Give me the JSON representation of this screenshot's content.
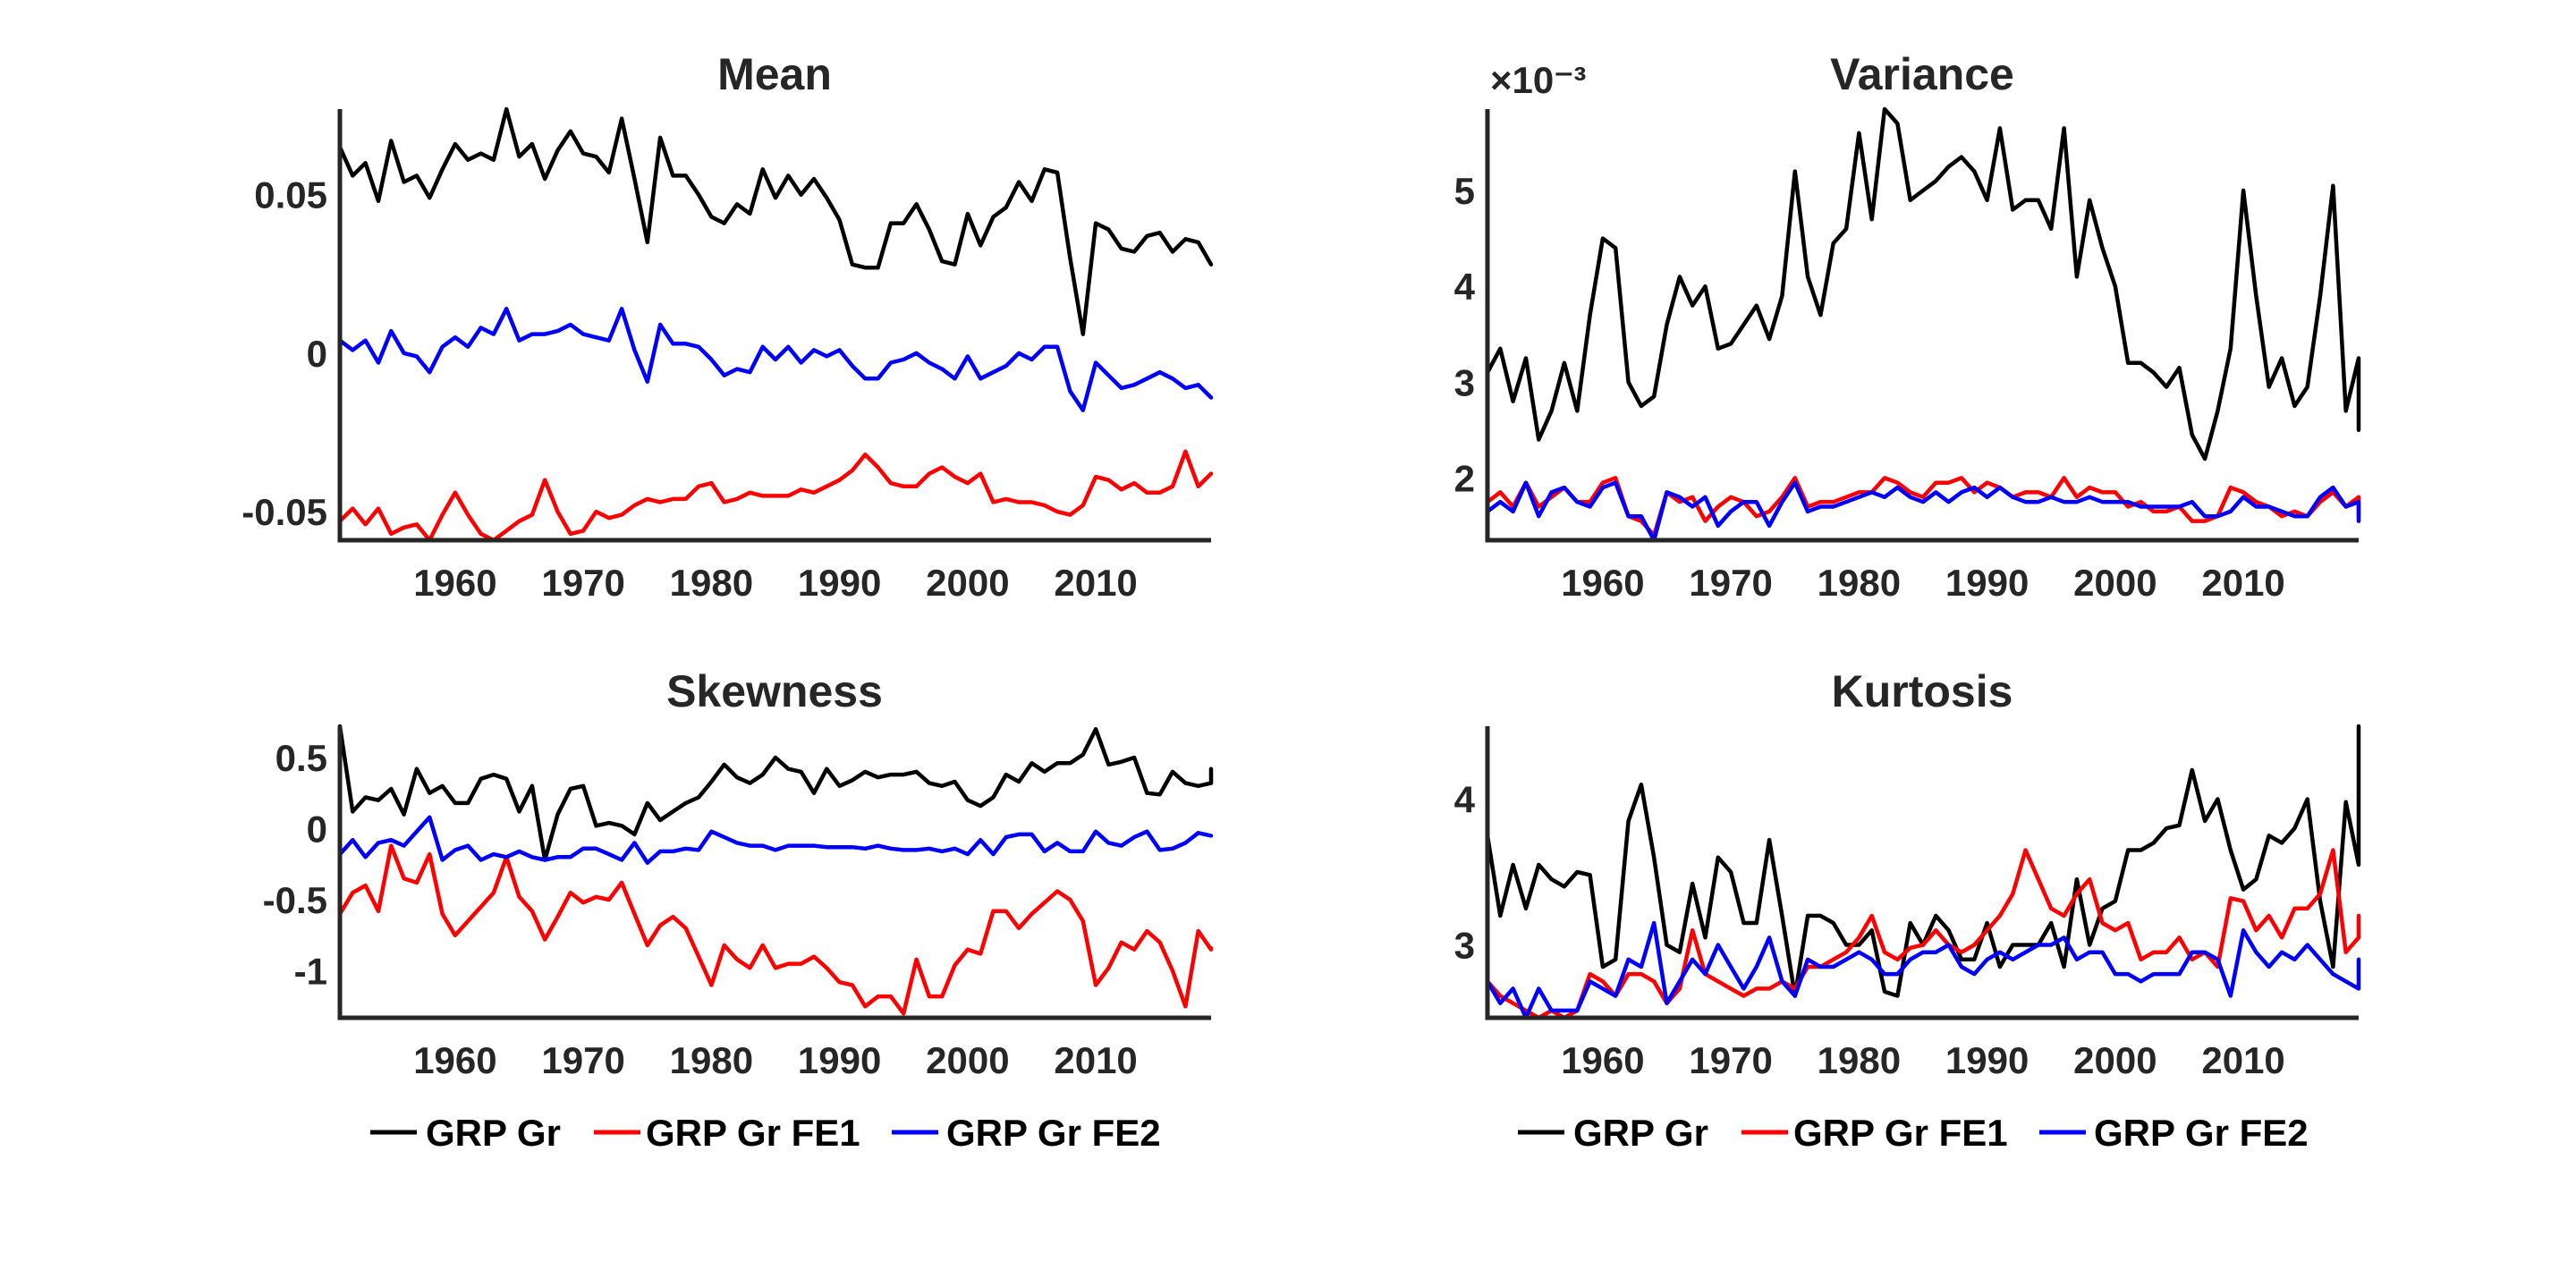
{
  "series_names": [
    "GRP Gr",
    "GRP Gr FE1",
    "GRP Gr FE2"
  ],
  "colors": {
    "GRP Gr": "#000000",
    "GRP Gr FE1": "#ff0000",
    "GRP Gr FE2": "#0000ff",
    "axis": "#262626"
  },
  "chart_data": [
    {
      "type": "line",
      "title": "Mean",
      "xlabel": "",
      "ylabel": "",
      "xlim": [
        1951,
        2019
      ],
      "ylim": [
        -0.059,
        0.077
      ],
      "xticks": [
        1960,
        1970,
        1980,
        1990,
        2000,
        2010
      ],
      "xtick_labels": [
        "1960",
        "1970",
        "1980",
        "1990",
        "2000",
        "2010"
      ],
      "yticks": [
        -0.05,
        0,
        0.05
      ],
      "ytick_labels": [
        "-0.05",
        "0",
        "0.05"
      ],
      "x_start": 1951,
      "series": [
        {
          "name": "GRP Gr",
          "values": [
            0.065,
            0.056,
            0.06,
            0.048,
            0.067,
            0.054,
            0.056,
            0.049,
            0.058,
            0.066,
            0.061,
            0.063,
            0.061,
            0.077,
            0.062,
            0.066,
            0.055,
            0.064,
            0.07,
            0.063,
            0.062,
            0.057,
            0.074,
            0.055,
            0.035,
            0.068,
            0.056,
            0.056,
            0.05,
            0.043,
            0.041,
            0.047,
            0.044,
            0.058,
            0.049,
            0.056,
            0.05,
            0.055,
            0.049,
            0.042,
            0.028,
            0.027,
            0.027,
            0.041,
            0.041,
            0.047,
            0.039,
            0.029,
            0.028,
            0.044,
            0.034,
            0.043,
            0.046,
            0.054,
            0.048,
            0.058,
            0.057,
            0.03,
            0.006,
            0.041,
            0.039,
            0.033,
            0.032,
            0.037,
            0.038,
            0.032,
            0.036,
            0.035,
            0.028
          ]
        },
        {
          "name": "GRP Gr FE1",
          "values": [
            -0.053,
            -0.049,
            -0.054,
            -0.049,
            -0.057,
            -0.055,
            -0.054,
            -0.059,
            -0.051,
            -0.044,
            -0.051,
            -0.057,
            -0.059,
            -0.056,
            -0.053,
            -0.051,
            -0.04,
            -0.05,
            -0.057,
            -0.056,
            -0.05,
            -0.052,
            -0.051,
            -0.048,
            -0.046,
            -0.047,
            -0.046,
            -0.046,
            -0.042,
            -0.041,
            -0.047,
            -0.046,
            -0.044,
            -0.045,
            -0.045,
            -0.045,
            -0.043,
            -0.044,
            -0.042,
            -0.04,
            -0.037,
            -0.032,
            -0.036,
            -0.041,
            -0.042,
            -0.042,
            -0.038,
            -0.036,
            -0.039,
            -0.041,
            -0.038,
            -0.047,
            -0.046,
            -0.047,
            -0.047,
            -0.048,
            -0.05,
            -0.051,
            -0.048,
            -0.039,
            -0.04,
            -0.043,
            -0.041,
            -0.044,
            -0.044,
            -0.042,
            -0.031,
            -0.042,
            -0.038
          ]
        },
        {
          "name": "GRP Gr FE2",
          "values": [
            0.004,
            0.001,
            0.004,
            -0.003,
            0.007,
            0.0,
            -0.001,
            -0.006,
            0.002,
            0.005,
            0.002,
            0.008,
            0.006,
            0.014,
            0.004,
            0.006,
            0.006,
            0.007,
            0.009,
            0.006,
            0.005,
            0.004,
            0.014,
            0.001,
            -0.009,
            0.009,
            0.003,
            0.003,
            0.002,
            -0.002,
            -0.007,
            -0.005,
            -0.006,
            0.002,
            -0.002,
            0.002,
            -0.003,
            0.001,
            -0.001,
            0.001,
            -0.004,
            -0.008,
            -0.008,
            -0.003,
            -0.002,
            0.0,
            -0.003,
            -0.005,
            -0.008,
            -0.001,
            -0.008,
            -0.006,
            -0.004,
            0.0,
            -0.002,
            0.002,
            0.002,
            -0.012,
            -0.018,
            -0.003,
            -0.007,
            -0.011,
            -0.01,
            -0.008,
            -0.006,
            -0.008,
            -0.011,
            -0.01,
            -0.014
          ]
        }
      ]
    },
    {
      "type": "line",
      "title": "Variance",
      "exponent_label": "×10⁻³",
      "xlabel": "",
      "ylabel": "",
      "xlim": [
        1951,
        2019
      ],
      "ylim": [
        1.35,
        5.85
      ],
      "xticks": [
        1960,
        1970,
        1980,
        1990,
        2000,
        2010
      ],
      "xtick_labels": [
        "1960",
        "1970",
        "1980",
        "1990",
        "2000",
        "2010"
      ],
      "yticks": [
        2,
        3,
        4,
        5
      ],
      "ytick_labels": [
        "2",
        "3",
        "4",
        "5"
      ],
      "x_start": 1951,
      "series": [
        {
          "name": "GRP Gr",
          "values": [
            3.1,
            3.35,
            2.8,
            3.25,
            2.4,
            2.7,
            3.2,
            2.7,
            3.7,
            4.5,
            4.4,
            3.0,
            2.75,
            2.85,
            3.6,
            4.1,
            3.8,
            4.0,
            3.35,
            3.4,
            3.6,
            3.8,
            3.45,
            3.9,
            5.2,
            4.1,
            3.7,
            4.45,
            4.6,
            5.6,
            4.7,
            5.85,
            5.7,
            4.9,
            5.0,
            5.1,
            5.25,
            5.35,
            5.2,
            4.9,
            5.65,
            4.8,
            4.9,
            4.9,
            4.6,
            5.65,
            4.1,
            4.9,
            4.4,
            4.0,
            3.2,
            3.2,
            3.1,
            2.95,
            3.15,
            2.45,
            2.2,
            2.7,
            3.35,
            5.0,
            3.9,
            2.95,
            3.25,
            2.75,
            2.95,
            3.9,
            5.05,
            2.7,
            3.25,
            2.5
          ]
        },
        {
          "name": "GRP Gr FE1",
          "values": [
            1.75,
            1.85,
            1.7,
            1.95,
            1.7,
            1.8,
            1.9,
            1.75,
            1.75,
            1.95,
            2.0,
            1.6,
            1.55,
            1.4,
            1.85,
            1.75,
            1.8,
            1.55,
            1.7,
            1.8,
            1.75,
            1.6,
            1.65,
            1.8,
            2.0,
            1.7,
            1.75,
            1.75,
            1.8,
            1.85,
            1.85,
            2.0,
            1.95,
            1.85,
            1.8,
            1.95,
            1.95,
            2.0,
            1.85,
            1.95,
            1.9,
            1.8,
            1.85,
            1.85,
            1.8,
            2.0,
            1.8,
            1.9,
            1.85,
            1.85,
            1.7,
            1.75,
            1.65,
            1.65,
            1.7,
            1.55,
            1.55,
            1.6,
            1.9,
            1.85,
            1.75,
            1.7,
            1.6,
            1.65,
            1.6,
            1.75,
            1.85,
            1.7,
            1.8,
            1.6
          ]
        },
        {
          "name": "GRP Gr FE2",
          "values": [
            1.65,
            1.75,
            1.65,
            1.95,
            1.6,
            1.85,
            1.9,
            1.75,
            1.7,
            1.9,
            1.95,
            1.6,
            1.6,
            1.35,
            1.85,
            1.8,
            1.7,
            1.8,
            1.5,
            1.65,
            1.75,
            1.75,
            1.5,
            1.75,
            1.95,
            1.65,
            1.7,
            1.7,
            1.75,
            1.8,
            1.85,
            1.8,
            1.9,
            1.8,
            1.75,
            1.85,
            1.75,
            1.85,
            1.9,
            1.8,
            1.9,
            1.8,
            1.75,
            1.75,
            1.8,
            1.75,
            1.75,
            1.8,
            1.75,
            1.75,
            1.75,
            1.7,
            1.7,
            1.7,
            1.7,
            1.75,
            1.6,
            1.6,
            1.65,
            1.8,
            1.7,
            1.7,
            1.65,
            1.6,
            1.6,
            1.8,
            1.9,
            1.7,
            1.75,
            1.55
          ]
        }
      ]
    },
    {
      "type": "line",
      "title": "Skewness",
      "xlabel": "",
      "ylabel": "",
      "xlim": [
        1951,
        2019
      ],
      "ylim": [
        -1.33,
        0.72
      ],
      "xticks": [
        1960,
        1970,
        1980,
        1990,
        2000,
        2010
      ],
      "xtick_labels": [
        "1960",
        "1970",
        "1980",
        "1990",
        "2000",
        "2010"
      ],
      "yticks": [
        -1,
        -0.5,
        0,
        0.5
      ],
      "ytick_labels": [
        "-1",
        "-0.5",
        "0",
        "0.5"
      ],
      "x_start": 1951,
      "series": [
        {
          "name": "GRP Gr",
          "values": [
            0.72,
            0.12,
            0.22,
            0.2,
            0.28,
            0.1,
            0.42,
            0.25,
            0.3,
            0.18,
            0.18,
            0.35,
            0.38,
            0.35,
            0.12,
            0.3,
            -0.22,
            0.1,
            0.28,
            0.3,
            0.02,
            0.04,
            0.02,
            -0.04,
            0.18,
            0.06,
            0.12,
            0.18,
            0.22,
            0.33,
            0.45,
            0.36,
            0.32,
            0.38,
            0.5,
            0.42,
            0.4,
            0.25,
            0.42,
            0.3,
            0.34,
            0.4,
            0.36,
            0.38,
            0.38,
            0.4,
            0.32,
            0.3,
            0.33,
            0.2,
            0.16,
            0.22,
            0.38,
            0.33,
            0.46,
            0.4,
            0.46,
            0.46,
            0.52,
            0.7,
            0.45,
            0.47,
            0.5,
            0.25,
            0.24,
            0.4,
            0.32,
            0.3,
            0.32,
            0.42
          ]
        },
        {
          "name": "GRP Gr FE1",
          "values": [
            -0.6,
            -0.45,
            -0.4,
            -0.58,
            -0.12,
            -0.35,
            -0.38,
            -0.18,
            -0.6,
            -0.75,
            -0.65,
            -0.55,
            -0.45,
            -0.2,
            -0.48,
            -0.58,
            -0.78,
            -0.62,
            -0.45,
            -0.52,
            -0.48,
            -0.5,
            -0.38,
            -0.6,
            -0.82,
            -0.68,
            -0.62,
            -0.7,
            -0.9,
            -1.1,
            -0.82,
            -0.92,
            -0.98,
            -0.82,
            -0.98,
            -0.95,
            -0.95,
            -0.9,
            -0.98,
            -1.08,
            -1.1,
            -1.25,
            -1.18,
            -1.18,
            -1.3,
            -0.92,
            -1.18,
            -1.18,
            -0.96,
            -0.85,
            -0.88,
            -0.58,
            -0.58,
            -0.7,
            -0.6,
            -0.52,
            -0.44,
            -0.5,
            -0.65,
            -1.1,
            -0.98,
            -0.8,
            -0.85,
            -0.72,
            -0.8,
            -1.0,
            -1.25,
            -0.72,
            -0.85,
            -0.84
          ]
        },
        {
          "name": "GRP Gr FE2",
          "values": [
            -0.18,
            -0.08,
            -0.2,
            -0.1,
            -0.08,
            -0.12,
            -0.02,
            0.08,
            -0.22,
            -0.15,
            -0.12,
            -0.22,
            -0.18,
            -0.2,
            -0.16,
            -0.2,
            -0.22,
            -0.2,
            -0.2,
            -0.14,
            -0.14,
            -0.18,
            -0.22,
            -0.1,
            -0.24,
            -0.16,
            -0.16,
            -0.14,
            -0.15,
            -0.02,
            -0.06,
            -0.1,
            -0.12,
            -0.12,
            -0.15,
            -0.12,
            -0.12,
            -0.12,
            -0.13,
            -0.13,
            -0.13,
            -0.14,
            -0.12,
            -0.14,
            -0.15,
            -0.15,
            -0.14,
            -0.16,
            -0.14,
            -0.18,
            -0.08,
            -0.18,
            -0.06,
            -0.04,
            -0.04,
            -0.16,
            -0.1,
            -0.16,
            -0.16,
            -0.02,
            -0.1,
            -0.12,
            -0.06,
            -0.02,
            -0.15,
            -0.14,
            -0.1,
            -0.03,
            -0.05,
            -0.05
          ]
        }
      ]
    },
    {
      "type": "line",
      "title": "Kurtosis",
      "xlabel": "",
      "ylabel": "",
      "xlim": [
        1951,
        2019
      ],
      "ylim": [
        2.5,
        4.5
      ],
      "xticks": [
        1960,
        1970,
        1980,
        1990,
        2000,
        2010
      ],
      "xtick_labels": [
        "1960",
        "1970",
        "1980",
        "1990",
        "2000",
        "2010"
      ],
      "yticks": [
        3,
        4
      ],
      "ytick_labels": [
        "3",
        "4"
      ],
      "x_start": 1951,
      "series": [
        {
          "name": "GRP Gr",
          "values": [
            3.75,
            3.2,
            3.55,
            3.25,
            3.55,
            3.45,
            3.4,
            3.5,
            3.48,
            2.85,
            2.9,
            3.85,
            4.1,
            3.6,
            3.0,
            2.95,
            3.42,
            3.05,
            3.6,
            3.5,
            3.15,
            3.15,
            3.72,
            3.2,
            2.65,
            3.2,
            3.2,
            3.15,
            3.0,
            3.0,
            3.1,
            2.68,
            2.65,
            3.15,
            3.0,
            3.2,
            3.1,
            2.9,
            2.9,
            3.15,
            2.85,
            3.0,
            3.0,
            3.0,
            3.15,
            2.85,
            3.45,
            3.0,
            3.25,
            3.3,
            3.65,
            3.65,
            3.7,
            3.8,
            3.82,
            4.2,
            3.85,
            4.0,
            3.65,
            3.38,
            3.45,
            3.75,
            3.7,
            3.8,
            4.0,
            3.3,
            2.85,
            3.98,
            3.55,
            4.5
          ]
        },
        {
          "name": "GRP Gr FE1",
          "values": [
            2.75,
            2.65,
            2.6,
            2.55,
            2.5,
            2.55,
            2.5,
            2.55,
            2.8,
            2.75,
            2.65,
            2.8,
            2.8,
            2.75,
            2.6,
            2.7,
            3.1,
            2.8,
            2.75,
            2.7,
            2.65,
            2.7,
            2.7,
            2.75,
            2.7,
            2.85,
            2.85,
            2.9,
            2.95,
            3.05,
            3.2,
            2.95,
            2.9,
            2.98,
            3.0,
            3.1,
            3.0,
            2.95,
            3.0,
            3.1,
            3.2,
            3.35,
            3.65,
            3.45,
            3.25,
            3.2,
            3.35,
            3.45,
            3.15,
            3.1,
            3.15,
            2.9,
            2.95,
            2.95,
            3.05,
            2.9,
            2.95,
            2.85,
            3.32,
            3.3,
            3.1,
            3.2,
            3.05,
            3.25,
            3.25,
            3.35,
            3.65,
            2.95,
            3.05,
            3.2
          ]
        },
        {
          "name": "GRP Gr FE2",
          "values": [
            2.75,
            2.6,
            2.7,
            2.5,
            2.7,
            2.55,
            2.55,
            2.55,
            2.75,
            2.7,
            2.65,
            2.9,
            2.85,
            3.15,
            2.6,
            2.75,
            2.9,
            2.8,
            3.0,
            2.85,
            2.7,
            2.85,
            3.05,
            2.75,
            2.65,
            2.9,
            2.85,
            2.85,
            2.9,
            2.95,
            2.9,
            2.8,
            2.8,
            2.9,
            2.95,
            2.95,
            3.0,
            2.85,
            2.8,
            2.9,
            2.95,
            2.9,
            2.95,
            3.0,
            3.0,
            3.05,
            2.9,
            2.95,
            2.95,
            2.8,
            2.8,
            2.75,
            2.8,
            2.8,
            2.8,
            2.95,
            2.95,
            2.9,
            2.65,
            3.1,
            2.95,
            2.85,
            2.95,
            2.9,
            3.0,
            2.9,
            2.8,
            2.75,
            2.7,
            2.9
          ]
        }
      ]
    }
  ]
}
